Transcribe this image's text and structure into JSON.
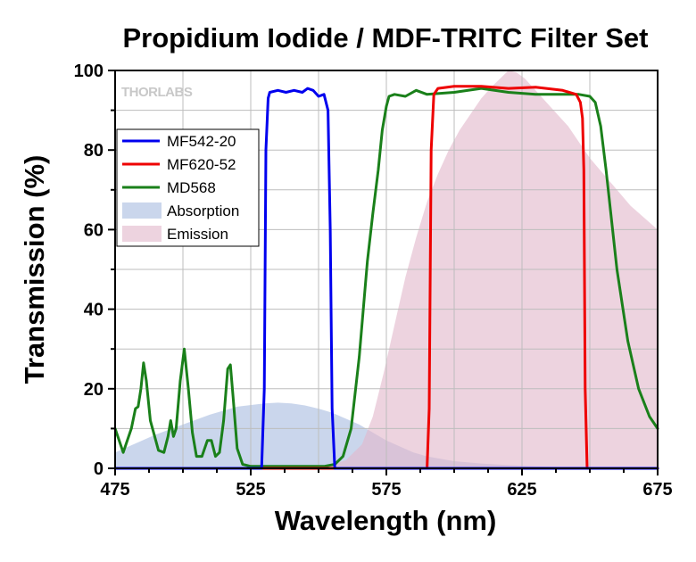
{
  "chart_data": {
    "type": "line",
    "title": "Propidium Iodide / MDF-TRITC Filter Set",
    "xlabel": "Wavelength (nm)",
    "ylabel": "Transmission (%)",
    "xlim": [
      475,
      675
    ],
    "ylim": [
      0,
      100
    ],
    "x_ticks": [
      "475",
      "525",
      "575",
      "625",
      "675"
    ],
    "y_ticks": [
      "0",
      "20",
      "40",
      "60",
      "80",
      "100"
    ],
    "grid": true,
    "legend_position": "upper-left",
    "logo": "THORLABS",
    "colors": {
      "MF542-20": "#0000ee",
      "MF620-52": "#ee0000",
      "MD568": "#1a801a",
      "Absorption": "#b8c8e6",
      "Emission": "#e2b8cc"
    },
    "series": [
      {
        "name": "MF542-20",
        "kind": "line",
        "x": [
          475,
          529,
          530,
          530.6,
          531.4,
          532,
          535,
          538,
          541,
          544,
          546,
          548,
          550,
          552,
          553.5,
          554.3,
          555,
          556,
          675
        ],
        "y": [
          0,
          0,
          20,
          80,
          93,
          94.5,
          95,
          94.5,
          95,
          94.5,
          95.5,
          95,
          93.5,
          94,
          90,
          60,
          15,
          0,
          0
        ]
      },
      {
        "name": "MF620-52",
        "kind": "line",
        "x": [
          475,
          590,
          590.8,
          591.5,
          592.5,
          594,
          600,
          610,
          620,
          630,
          640,
          645,
          646.5,
          647.3,
          647.8,
          648.3,
          649,
          675
        ],
        "y": [
          0,
          0,
          15,
          80,
          94,
          95.5,
          96,
          96,
          95.5,
          95.8,
          95,
          94,
          92,
          88,
          75,
          20,
          0,
          0
        ]
      },
      {
        "name": "MD568",
        "kind": "line",
        "x": [
          475,
          478,
          481,
          482.5,
          483.5,
          484.5,
          485.5,
          486.5,
          488,
          491,
          493,
          494.5,
          495.5,
          496.5,
          497.5,
          499,
          500.5,
          502,
          503.5,
          505,
          507,
          509,
          510.5,
          512,
          513.5,
          515,
          516.5,
          517.5,
          518.5,
          520,
          522,
          525,
          535,
          545,
          552,
          556,
          559,
          562,
          565,
          568,
          570,
          572,
          573.5,
          575,
          576,
          578,
          582,
          586,
          590,
          600,
          610,
          620,
          630,
          640,
          646,
          650,
          652,
          654,
          656,
          660,
          664,
          668,
          672,
          675
        ],
        "y": [
          10,
          4,
          10,
          15,
          15.5,
          20,
          26.5,
          22,
          12,
          4.5,
          4,
          8,
          12,
          8,
          10,
          22,
          30,
          20,
          9,
          3,
          3,
          7,
          7,
          3,
          4,
          12,
          25,
          26,
          18,
          5,
          1,
          0.5,
          0.5,
          0.5,
          0.5,
          1,
          3,
          10,
          28,
          52,
          64,
          75,
          85,
          91,
          93.5,
          94,
          93.5,
          95,
          94,
          94.5,
          95.5,
          94.5,
          94,
          94,
          94,
          93.5,
          92,
          86,
          75,
          50,
          32,
          20,
          13,
          10
        ]
      },
      {
        "name": "Absorption",
        "kind": "area",
        "x": [
          475,
          480,
          490,
          500,
          510,
          520,
          530,
          535,
          540,
          545,
          550,
          555,
          560,
          565,
          570,
          575,
          580,
          585,
          590,
          600,
          610,
          620,
          630,
          640,
          650,
          660,
          675
        ],
        "y": [
          4,
          5.5,
          8.5,
          11,
          13.5,
          15.5,
          16.3,
          16.5,
          16.3,
          15.8,
          15,
          14,
          12.5,
          11,
          9,
          7,
          5.5,
          4,
          3,
          1.8,
          1.2,
          0.8,
          0.5,
          0.3,
          0.2,
          0.1,
          0
        ]
      },
      {
        "name": "Emission",
        "kind": "area",
        "x": [
          475,
          550,
          560,
          566,
          570,
          574,
          578,
          582,
          586,
          590,
          594,
          598,
          602,
          606,
          610,
          614,
          617,
          620,
          623,
          626,
          630,
          634,
          638,
          642,
          646,
          650,
          655,
          660,
          665,
          670,
          675
        ],
        "y": [
          0,
          0,
          2,
          6,
          13,
          24,
          36,
          48,
          58,
          67,
          74,
          80,
          85,
          89,
          93,
          96,
          98,
          100,
          99.5,
          98,
          95,
          92,
          89,
          86,
          82,
          78,
          74,
          70,
          66,
          63,
          60
        ]
      }
    ]
  }
}
